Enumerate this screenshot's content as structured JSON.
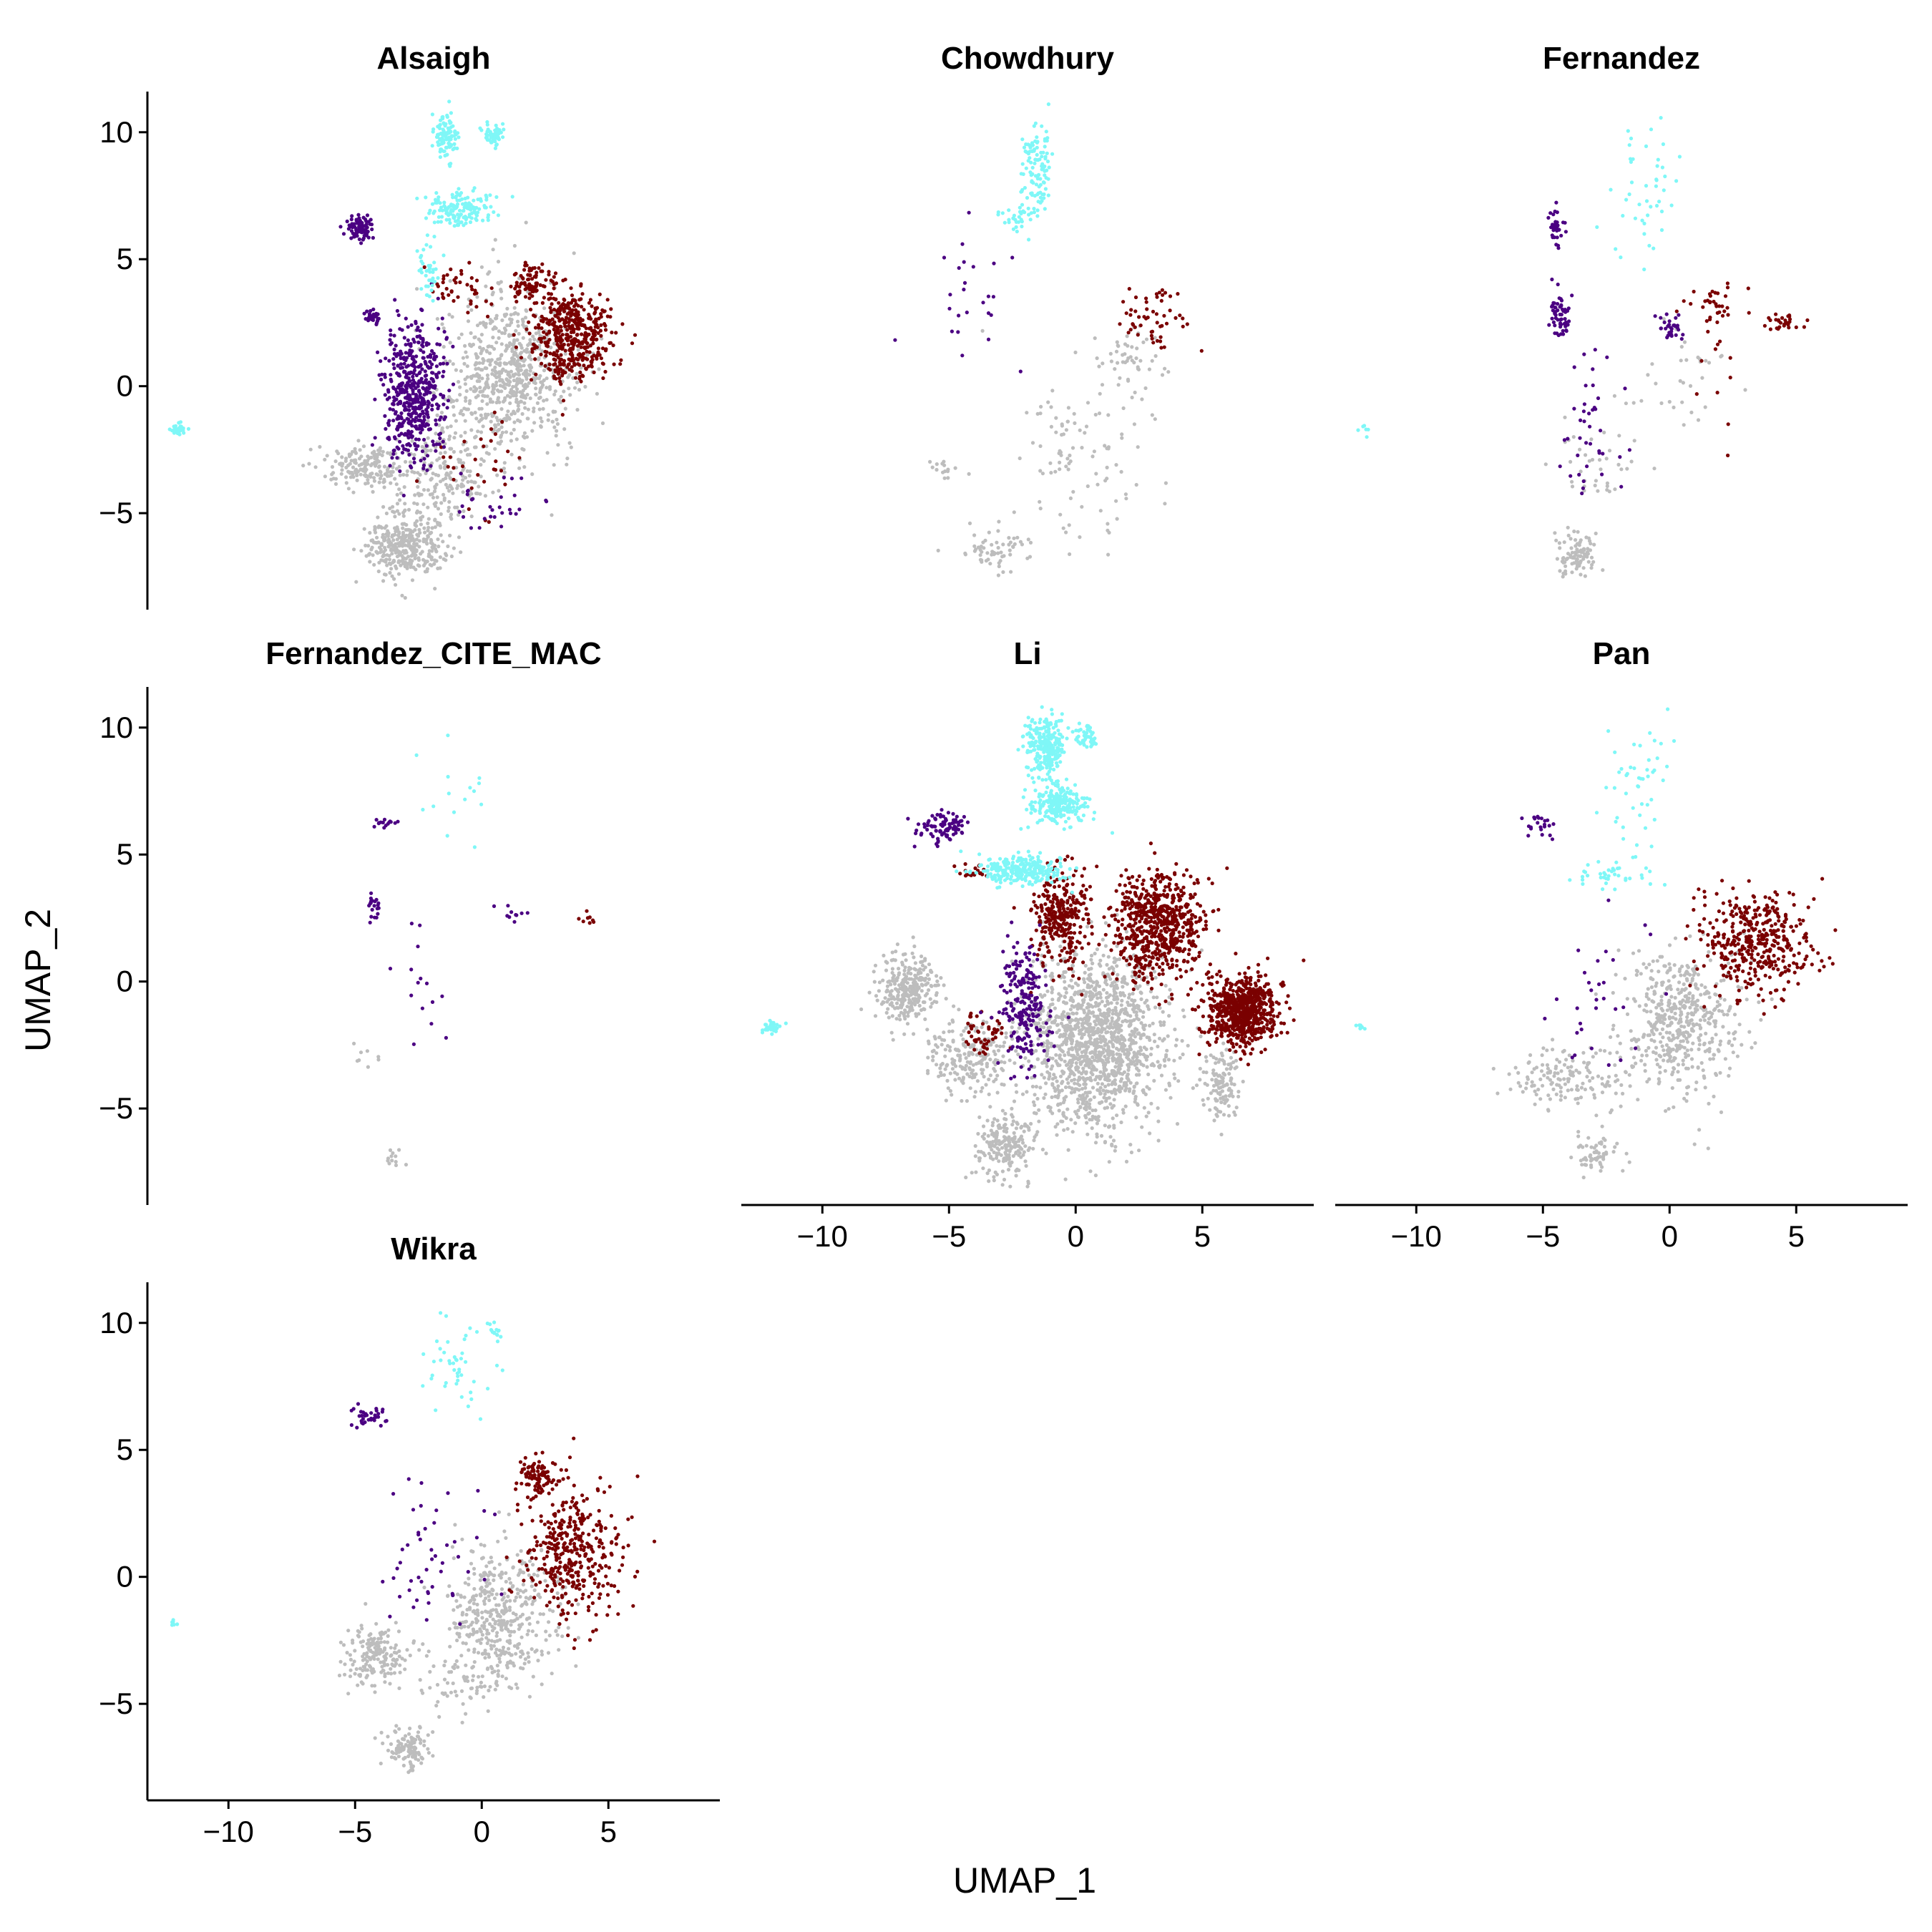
{
  "figure": {
    "xlabel": "UMAP_1",
    "ylabel": "UMAP_2"
  },
  "chart_data": {
    "type": "scatter",
    "layout": "facet-wrap 3 columns",
    "xlim": [
      -13.2,
      9.4
    ],
    "ylim": [
      -8.8,
      11.6
    ],
    "x_ticks": [
      -10,
      -5,
      0,
      5
    ],
    "x_tick_labels": [
      "−10",
      "−5",
      "0",
      "5"
    ],
    "y_ticks": [
      -5,
      0,
      5,
      10
    ],
    "y_tick_labels": [
      "−5",
      "0",
      "5",
      "10"
    ],
    "grid": false,
    "legend": "none",
    "colors": {
      "c1": "#bdbdbd",
      "c2": "#4b0082",
      "c3": "#7a0000",
      "c4": "#7ff7f7"
    },
    "panels": [
      {
        "title": "Alsaigh",
        "clusters": [
          {
            "c": "c1",
            "cx": 1.2,
            "cy": 0.5,
            "sx": 1.6,
            "sy": 2.2,
            "n": 700
          },
          {
            "c": "c1",
            "cx": -3.0,
            "cy": -6.3,
            "sx": 1.0,
            "sy": 0.9,
            "n": 350
          },
          {
            "c": "c1",
            "cx": -4.7,
            "cy": -3.2,
            "sx": 1.0,
            "sy": 0.6,
            "n": 160
          },
          {
            "c": "c1",
            "cx": -1.6,
            "cy": -3.5,
            "sx": 1.2,
            "sy": 1.4,
            "n": 200
          },
          {
            "c": "c2",
            "cx": -2.7,
            "cy": -0.3,
            "sx": 0.8,
            "sy": 1.8,
            "n": 500
          },
          {
            "c": "c2",
            "cx": -4.8,
            "cy": 6.2,
            "sx": 0.4,
            "sy": 0.35,
            "n": 80
          },
          {
            "c": "c2",
            "cx": -4.3,
            "cy": 2.7,
            "sx": 0.2,
            "sy": 0.2,
            "n": 35
          },
          {
            "c": "c2",
            "cx": -0.3,
            "cy": -4.5,
            "sx": 1.4,
            "sy": 0.8,
            "n": 30
          },
          {
            "c": "c3",
            "cx": 3.5,
            "cy": 2.0,
            "sx": 1.1,
            "sy": 1.2,
            "n": 450
          },
          {
            "c": "c3",
            "cx": 2.0,
            "cy": 4.0,
            "sx": 0.6,
            "sy": 0.5,
            "n": 90
          },
          {
            "c": "c3",
            "cx": -1.0,
            "cy": 4.0,
            "sx": 1.0,
            "sy": 0.6,
            "n": 40
          },
          {
            "c": "c3",
            "cx": 0.0,
            "cy": -3.0,
            "sx": 1.5,
            "sy": 1.2,
            "n": 30
          },
          {
            "c": "c4",
            "cx": -1.4,
            "cy": 9.8,
            "sx": 0.3,
            "sy": 0.6,
            "n": 100
          },
          {
            "c": "c4",
            "cx": 0.5,
            "cy": 9.9,
            "sx": 0.25,
            "sy": 0.3,
            "n": 60
          },
          {
            "c": "c4",
            "cx": -0.8,
            "cy": 7.0,
            "sx": 0.8,
            "sy": 0.5,
            "n": 150
          },
          {
            "c": "c4",
            "cx": -2.1,
            "cy": 4.5,
            "sx": 0.3,
            "sy": 1.0,
            "n": 40
          },
          {
            "c": "c4",
            "cx": -12.0,
            "cy": -1.7,
            "sx": 0.2,
            "sy": 0.15,
            "n": 30
          }
        ]
      },
      {
        "title": "Chowdhury",
        "clusters": [
          {
            "c": "c1",
            "cx": 0.3,
            "cy": -3.0,
            "sx": 1.7,
            "sy": 2.3,
            "n": 100
          },
          {
            "c": "c1",
            "cx": -3.2,
            "cy": -6.5,
            "sx": 1.0,
            "sy": 0.6,
            "n": 60
          },
          {
            "c": "c1",
            "cx": 2.0,
            "cy": 1.0,
            "sx": 1.0,
            "sy": 1.0,
            "n": 50
          },
          {
            "c": "c1",
            "cx": -5.5,
            "cy": -3.2,
            "sx": 0.6,
            "sy": 0.3,
            "n": 15
          },
          {
            "c": "c2",
            "cx": -4.0,
            "cy": 3.5,
            "sx": 1.3,
            "sy": 2.0,
            "n": 25
          },
          {
            "c": "c3",
            "cx": 3.0,
            "cy": 2.7,
            "sx": 0.9,
            "sy": 0.8,
            "n": 55
          },
          {
            "c": "c4",
            "cx": -1.5,
            "cy": 8.5,
            "sx": 0.4,
            "sy": 1.2,
            "n": 110
          },
          {
            "c": "c4",
            "cx": -2.3,
            "cy": 6.6,
            "sx": 0.5,
            "sy": 0.3,
            "n": 30
          }
        ]
      },
      {
        "title": "Fernandez",
        "clusters": [
          {
            "c": "c1",
            "cx": -3.7,
            "cy": -6.6,
            "sx": 0.6,
            "sy": 0.6,
            "n": 90
          },
          {
            "c": "c1",
            "cx": -3.0,
            "cy": -3.0,
            "sx": 1.5,
            "sy": 1.5,
            "n": 40
          },
          {
            "c": "c1",
            "cx": 0.5,
            "cy": 0.5,
            "sx": 1.0,
            "sy": 1.5,
            "n": 30
          },
          {
            "c": "c2",
            "cx": -4.4,
            "cy": 2.8,
            "sx": 0.25,
            "sy": 0.6,
            "n": 60
          },
          {
            "c": "c2",
            "cx": -4.5,
            "cy": 6.2,
            "sx": 0.2,
            "sy": 0.5,
            "n": 40
          },
          {
            "c": "c2",
            "cx": 0.0,
            "cy": 2.3,
            "sx": 0.3,
            "sy": 0.3,
            "n": 30
          },
          {
            "c": "c2",
            "cx": -3.0,
            "cy": -1.5,
            "sx": 0.7,
            "sy": 1.8,
            "n": 40
          },
          {
            "c": "c3",
            "cx": 4.5,
            "cy": 2.5,
            "sx": 0.6,
            "sy": 0.2,
            "n": 30
          },
          {
            "c": "c3",
            "cx": 1.8,
            "cy": 3.2,
            "sx": 0.8,
            "sy": 0.7,
            "n": 35
          },
          {
            "c": "c3",
            "cx": 2.5,
            "cy": 0.0,
            "sx": 1.2,
            "sy": 1.5,
            "n": 10
          },
          {
            "c": "c4",
            "cx": -1.0,
            "cy": 7.5,
            "sx": 1.0,
            "sy": 1.8,
            "n": 45
          },
          {
            "c": "c4",
            "cx": -12.0,
            "cy": -1.7,
            "sx": 0.15,
            "sy": 0.2,
            "n": 6
          }
        ]
      },
      {
        "title": "Fernandez_CITE_MAC",
        "clusters": [
          {
            "c": "c1",
            "cx": -3.5,
            "cy": -6.9,
            "sx": 0.3,
            "sy": 0.3,
            "n": 12
          },
          {
            "c": "c1",
            "cx": -4.5,
            "cy": -2.9,
            "sx": 0.6,
            "sy": 0.3,
            "n": 8
          },
          {
            "c": "c2",
            "cx": -4.3,
            "cy": 3.0,
            "sx": 0.2,
            "sy": 0.4,
            "n": 20
          },
          {
            "c": "c2",
            "cx": -3.8,
            "cy": 6.2,
            "sx": 0.3,
            "sy": 0.2,
            "n": 15
          },
          {
            "c": "c2",
            "cx": -2.5,
            "cy": -0.5,
            "sx": 1.0,
            "sy": 2.0,
            "n": 15
          },
          {
            "c": "c2",
            "cx": 1.2,
            "cy": 2.7,
            "sx": 0.5,
            "sy": 0.3,
            "n": 10
          },
          {
            "c": "c3",
            "cx": 4.3,
            "cy": 2.5,
            "sx": 0.6,
            "sy": 0.2,
            "n": 8
          },
          {
            "c": "c4",
            "cx": -1.0,
            "cy": 7.5,
            "sx": 0.8,
            "sy": 1.2,
            "n": 15
          }
        ]
      },
      {
        "title": "Li",
        "clusters": [
          {
            "c": "c1",
            "cx": 0.8,
            "cy": -2.3,
            "sx": 1.8,
            "sy": 2.3,
            "n": 1400
          },
          {
            "c": "c1",
            "cx": -6.6,
            "cy": -0.3,
            "sx": 0.8,
            "sy": 0.9,
            "n": 280
          },
          {
            "c": "c1",
            "cx": -2.8,
            "cy": -6.5,
            "sx": 0.8,
            "sy": 0.9,
            "n": 200
          },
          {
            "c": "c1",
            "cx": -4.0,
            "cy": -3.0,
            "sx": 1.2,
            "sy": 1.0,
            "n": 220
          },
          {
            "c": "c1",
            "cx": 5.8,
            "cy": -4.0,
            "sx": 0.5,
            "sy": 1.0,
            "n": 120
          },
          {
            "c": "c3",
            "cx": 6.6,
            "cy": -1.2,
            "sx": 0.9,
            "sy": 0.9,
            "n": 700
          },
          {
            "c": "c3",
            "cx": 3.2,
            "cy": 2.2,
            "sx": 1.2,
            "sy": 1.4,
            "n": 650
          },
          {
            "c": "c3",
            "cx": -0.6,
            "cy": 2.5,
            "sx": 0.7,
            "sy": 1.3,
            "n": 300
          },
          {
            "c": "c3",
            "cx": -3.7,
            "cy": -2.0,
            "sx": 0.6,
            "sy": 0.6,
            "n": 50
          },
          {
            "c": "c3",
            "cx": -4.0,
            "cy": 4.3,
            "sx": 0.4,
            "sy": 0.2,
            "n": 20
          },
          {
            "c": "c2",
            "cx": -2.0,
            "cy": -1.0,
            "sx": 0.6,
            "sy": 1.6,
            "n": 220
          },
          {
            "c": "c2",
            "cx": -5.2,
            "cy": 6.1,
            "sx": 0.6,
            "sy": 0.4,
            "n": 90
          },
          {
            "c": "c4",
            "cx": -1.2,
            "cy": 9.2,
            "sx": 0.5,
            "sy": 0.8,
            "n": 260
          },
          {
            "c": "c4",
            "cx": -0.6,
            "cy": 7.0,
            "sx": 0.8,
            "sy": 0.5,
            "n": 220
          },
          {
            "c": "c4",
            "cx": -2.2,
            "cy": 4.4,
            "sx": 1.1,
            "sy": 0.4,
            "n": 260
          },
          {
            "c": "c4",
            "cx": 0.4,
            "cy": 9.6,
            "sx": 0.3,
            "sy": 0.3,
            "n": 50
          },
          {
            "c": "c4",
            "cx": -12.0,
            "cy": -1.8,
            "sx": 0.2,
            "sy": 0.15,
            "n": 45
          }
        ]
      },
      {
        "title": "Pan",
        "clusters": [
          {
            "c": "c1",
            "cx": 0.5,
            "cy": -1.5,
            "sx": 1.5,
            "sy": 2.0,
            "n": 500
          },
          {
            "c": "c1",
            "cx": -4.0,
            "cy": -3.8,
            "sx": 1.5,
            "sy": 0.7,
            "n": 150
          },
          {
            "c": "c1",
            "cx": -2.8,
            "cy": -6.8,
            "sx": 0.6,
            "sy": 0.6,
            "n": 60
          },
          {
            "c": "c3",
            "cx": 3.5,
            "cy": 1.5,
            "sx": 1.4,
            "sy": 1.3,
            "n": 400
          },
          {
            "c": "c2",
            "cx": -2.5,
            "cy": -1.0,
            "sx": 1.2,
            "sy": 2.5,
            "n": 30
          },
          {
            "c": "c2",
            "cx": -5.1,
            "cy": 6.1,
            "sx": 0.35,
            "sy": 0.3,
            "n": 22
          },
          {
            "c": "c4",
            "cx": -1.2,
            "cy": 8.0,
            "sx": 0.8,
            "sy": 1.8,
            "n": 45
          },
          {
            "c": "c4",
            "cx": -2.2,
            "cy": 4.3,
            "sx": 1.2,
            "sy": 0.5,
            "n": 40
          },
          {
            "c": "c4",
            "cx": -12.2,
            "cy": -1.8,
            "sx": 0.1,
            "sy": 0.1,
            "n": 8
          }
        ]
      },
      {
        "title": "Wikra",
        "clusters": [
          {
            "c": "c1",
            "cx": 0.8,
            "cy": -1.5,
            "sx": 1.5,
            "sy": 1.9,
            "n": 450
          },
          {
            "c": "c1",
            "cx": -4.2,
            "cy": -3.2,
            "sx": 0.8,
            "sy": 0.8,
            "n": 170
          },
          {
            "c": "c1",
            "cx": -3.0,
            "cy": -6.7,
            "sx": 0.6,
            "sy": 0.6,
            "n": 110
          },
          {
            "c": "c1",
            "cx": -1.0,
            "cy": -4.0,
            "sx": 1.0,
            "sy": 1.0,
            "n": 60
          },
          {
            "c": "c3",
            "cx": 3.5,
            "cy": 1.0,
            "sx": 1.3,
            "sy": 1.8,
            "n": 380
          },
          {
            "c": "c3",
            "cx": 2.2,
            "cy": 4.0,
            "sx": 0.5,
            "sy": 0.5,
            "n": 90
          },
          {
            "c": "c2",
            "cx": -1.8,
            "cy": 0.5,
            "sx": 1.5,
            "sy": 2.0,
            "n": 50
          },
          {
            "c": "c2",
            "cx": -4.5,
            "cy": 6.3,
            "sx": 0.5,
            "sy": 0.3,
            "n": 35
          },
          {
            "c": "c4",
            "cx": -1.0,
            "cy": 8.0,
            "sx": 0.9,
            "sy": 1.5,
            "n": 45
          },
          {
            "c": "c4",
            "cx": 0.5,
            "cy": 9.7,
            "sx": 0.2,
            "sy": 0.3,
            "n": 15
          },
          {
            "c": "c4",
            "cx": -12.2,
            "cy": -1.8,
            "sx": 0.1,
            "sy": 0.1,
            "n": 8
          }
        ]
      }
    ]
  }
}
